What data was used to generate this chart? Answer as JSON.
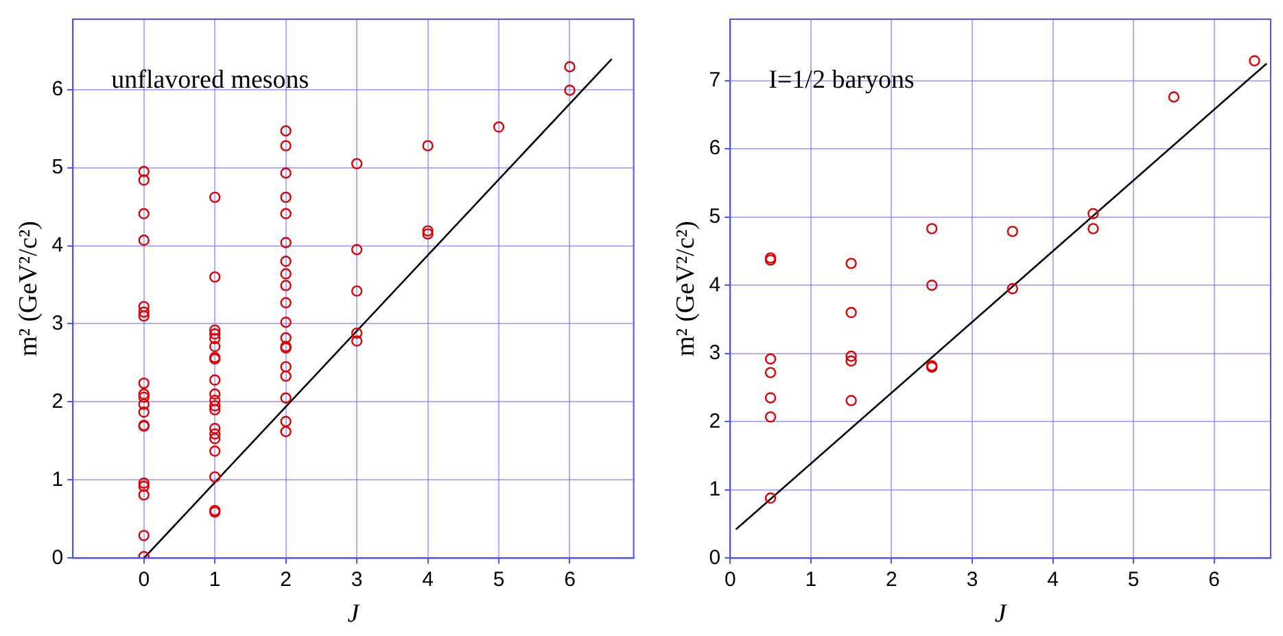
{
  "chart_data": [
    {
      "type": "scatter",
      "xlabel": "J",
      "ylabel": "m² (GeV²/c²)",
      "annotations": [
        "unflavored mesons"
      ],
      "xlim": [
        -1,
        6.9
      ],
      "ylim": [
        0,
        6.9
      ],
      "xticks": [
        0,
        1,
        2,
        3,
        4,
        5,
        6
      ],
      "yticks": [
        0,
        1,
        2,
        3,
        4,
        5,
        6
      ],
      "grid": true,
      "marker": "circle",
      "series": [
        {
          "color": "#e00000",
          "x": [
            0,
            0,
            0,
            0,
            0,
            0,
            0,
            0,
            0,
            0,
            0,
            0,
            0,
            0,
            0,
            0,
            0,
            0,
            0,
            1,
            1,
            1,
            1,
            1,
            1,
            1,
            1,
            1,
            1,
            1,
            1,
            1,
            1,
            1,
            1,
            1,
            1,
            1,
            1,
            2,
            2,
            2,
            2,
            2,
            2,
            2,
            2,
            2,
            2,
            2,
            2,
            2,
            2,
            2,
            2,
            2,
            2,
            2,
            3,
            3,
            3,
            3,
            3,
            4,
            4,
            4,
            5,
            6,
            6
          ],
          "values": [
            4.95,
            4.84,
            4.41,
            4.07,
            3.22,
            3.15,
            3.1,
            2.24,
            2.1,
            2.06,
            1.97,
            1.87,
            1.7,
            1.69,
            0.96,
            0.92,
            0.81,
            0.29,
            0.02,
            4.62,
            3.6,
            2.92,
            2.87,
            2.81,
            2.71,
            2.57,
            2.55,
            2.28,
            2.1,
            2.02,
            1.95,
            1.9,
            1.66,
            1.59,
            1.53,
            1.37,
            1.04,
            0.61,
            0.59,
            5.47,
            5.28,
            4.93,
            4.62,
            4.41,
            4.04,
            3.8,
            3.64,
            3.49,
            3.27,
            3.02,
            2.82,
            2.71,
            2.69,
            2.45,
            2.33,
            2.05,
            1.75,
            1.62,
            5.05,
            3.95,
            3.42,
            2.88,
            2.78,
            5.28,
            4.19,
            4.15,
            5.52,
            6.29,
            5.99
          ]
        },
        {
          "type": "line",
          "color": "#000000",
          "marker": "none",
          "x": [
            0,
            6.59
          ],
          "values": [
            0,
            6.39
          ]
        }
      ]
    },
    {
      "type": "scatter",
      "xlabel": "J",
      "ylabel": "m² (GeV²/c²)",
      "annotations": [
        "I=1/2 baryons"
      ],
      "xlim": [
        0,
        6.7
      ],
      "ylim": [
        0,
        7.9
      ],
      "xticks": [
        0,
        1,
        2,
        3,
        4,
        5,
        6
      ],
      "yticks": [
        0,
        1,
        2,
        3,
        4,
        5,
        6,
        7
      ],
      "grid": true,
      "marker": "circle",
      "series": [
        {
          "color": "#e00000",
          "x": [
            0.5,
            0.5,
            0.5,
            0.5,
            0.5,
            0.5,
            0.5,
            1.5,
            1.5,
            1.5,
            1.5,
            1.5,
            2.5,
            2.5,
            2.5,
            2.5,
            3.5,
            3.5,
            4.5,
            4.5,
            5.5,
            6.5
          ],
          "values": [
            4.4,
            4.37,
            2.92,
            2.72,
            2.35,
            2.07,
            0.88,
            4.32,
            3.6,
            2.96,
            2.89,
            2.31,
            4.83,
            4,
            2.82,
            2.8,
            4.79,
            3.95,
            5.05,
            4.83,
            6.76,
            7.29
          ]
        },
        {
          "type": "line",
          "color": "#000000",
          "marker": "none",
          "x": [
            0.07,
            6.65
          ],
          "values": [
            0.42,
            7.25
          ]
        }
      ]
    }
  ]
}
